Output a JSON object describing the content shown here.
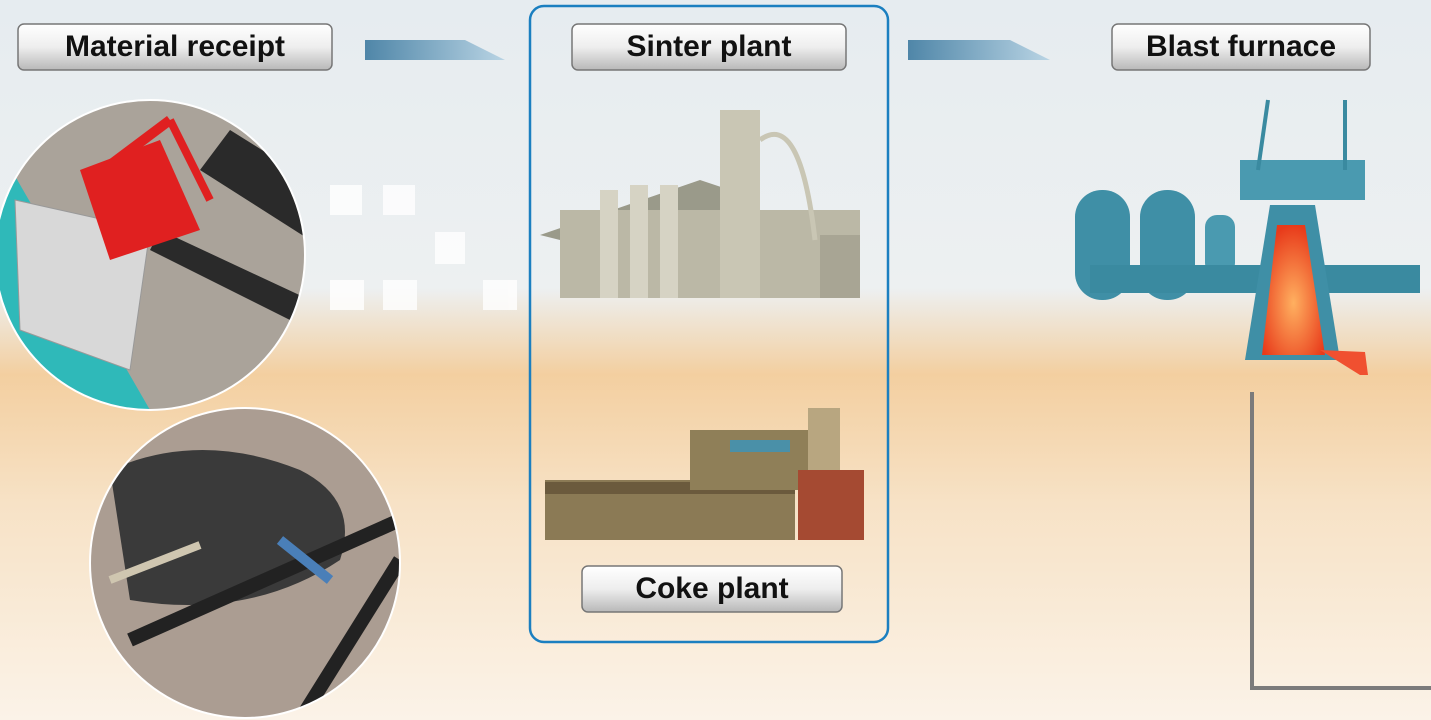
{
  "nodes": [
    {
      "label": "Material receipt"
    },
    {
      "label": "Sinter plant"
    },
    {
      "label": "Blast furnace"
    },
    {
      "label": "Coke plant"
    }
  ]
}
